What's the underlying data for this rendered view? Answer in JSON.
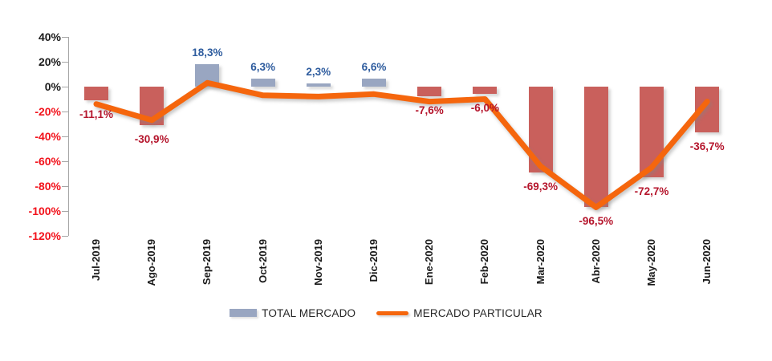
{
  "chart_data": {
    "type": "bar+line",
    "title": "",
    "xlabel": "",
    "ylabel": "",
    "categories": [
      "Jul-2019",
      "Ago-2019",
      "Sep-2019",
      "Oct-2019",
      "Nov-2019",
      "Dic-2019",
      "Ene-2020",
      "Feb-2020",
      "Mar-2020",
      "Abr-2020",
      "May-2020",
      "Jun-2020"
    ],
    "series": [
      {
        "name": "TOTAL MERCADO",
        "mark": "bar",
        "values": [
          -11.1,
          -30.9,
          18.3,
          6.3,
          2.3,
          6.6,
          -7.6,
          -6.0,
          -69.3,
          -96.5,
          -72.7,
          -36.7
        ],
        "labels": [
          "-11,1%",
          "-30,9%",
          "18,3%",
          "6,3%",
          "2,3%",
          "6,6%",
          "-7,6%",
          "-6,0%",
          "-69,3%",
          "-96,5%",
          "-72,7%",
          "-36,7%"
        ],
        "color_positive": "#99A6C1",
        "color_negative": "#C9605C",
        "label_color_positive": "#2E5C9E",
        "label_color_negative": "#B5152C"
      },
      {
        "name": "MERCADO PARTICULAR",
        "mark": "line",
        "values": [
          -14,
          -27,
          3,
          -7,
          -8,
          -6,
          -12,
          -10,
          -64,
          -97,
          -65,
          -12
        ],
        "values_note": "estimated from line position; this series has no data labels in the chart",
        "color": "#F5660D"
      }
    ],
    "ylim": [
      -120,
      40
    ],
    "yticks": [
      {
        "label": "40%",
        "value": 40
      },
      {
        "label": "20%",
        "value": 20
      },
      {
        "label": "0%",
        "value": 0
      },
      {
        "label": "-20%",
        "value": -20
      },
      {
        "label": "-40%",
        "value": -40
      },
      {
        "label": "-60%",
        "value": -60
      },
      {
        "label": "-80%",
        "value": -80
      },
      {
        "label": "-100%",
        "value": -100
      },
      {
        "label": "-120%",
        "value": -120
      }
    ],
    "ytick_color_nonnegative": "#1a1a1a",
    "ytick_color_negative": "#F2121B",
    "grid": false,
    "legend_position": "bottom-center"
  }
}
